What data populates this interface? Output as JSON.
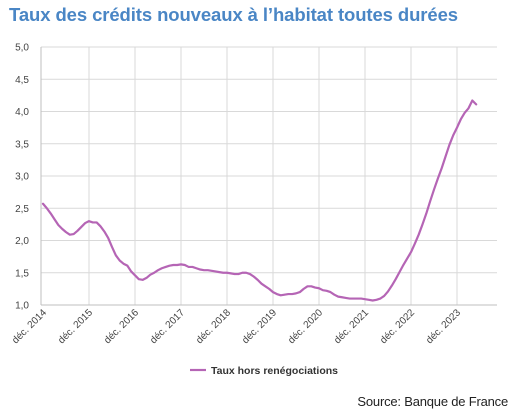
{
  "title": "Taux des crédits nouveaux à l’habitat toutes durées",
  "source": "Source: Banque de France",
  "chart_data": {
    "type": "line",
    "title": "Taux des crédits nouveaux à l’habitat toutes durées",
    "ylim": [
      1.0,
      5.0
    ],
    "y_ticks": [
      "1,0",
      "1,5",
      "2,0",
      "2,5",
      "3,0",
      "3,5",
      "4,0",
      "4,5",
      "5,0"
    ],
    "x_ticks": [
      "déc. 2014",
      "déc. 2015",
      "déc. 2016",
      "déc. 2017",
      "déc. 2018",
      "déc. 2019",
      "déc. 2020",
      "déc. 2021",
      "déc. 2022",
      "déc. 2023"
    ],
    "grid": true,
    "legend_position": "bottom-center",
    "series": [
      {
        "name": "Taux hors renégociations",
        "color": "#b565b5",
        "x_start": "déc. 2014",
        "frequency": "monthly",
        "values": [
          2.57,
          2.5,
          2.42,
          2.33,
          2.24,
          2.18,
          2.13,
          2.09,
          2.1,
          2.15,
          2.21,
          2.27,
          2.3,
          2.28,
          2.28,
          2.22,
          2.14,
          2.04,
          1.9,
          1.77,
          1.69,
          1.64,
          1.61,
          1.52,
          1.46,
          1.4,
          1.39,
          1.42,
          1.47,
          1.5,
          1.54,
          1.57,
          1.59,
          1.61,
          1.62,
          1.62,
          1.63,
          1.62,
          1.59,
          1.59,
          1.57,
          1.55,
          1.54,
          1.54,
          1.53,
          1.52,
          1.51,
          1.5,
          1.5,
          1.49,
          1.48,
          1.48,
          1.5,
          1.5,
          1.48,
          1.44,
          1.39,
          1.33,
          1.29,
          1.25,
          1.2,
          1.17,
          1.15,
          1.16,
          1.17,
          1.17,
          1.18,
          1.2,
          1.25,
          1.29,
          1.29,
          1.27,
          1.26,
          1.23,
          1.22,
          1.2,
          1.16,
          1.13,
          1.12,
          1.11,
          1.1,
          1.1,
          1.1,
          1.1,
          1.09,
          1.08,
          1.07,
          1.08,
          1.1,
          1.14,
          1.21,
          1.3,
          1.4,
          1.51,
          1.62,
          1.72,
          1.82,
          1.95,
          2.09,
          2.25,
          2.42,
          2.61,
          2.79,
          2.96,
          3.12,
          3.3,
          3.48,
          3.63,
          3.75,
          3.88,
          3.98,
          4.05,
          4.17,
          4.11
        ]
      }
    ]
  }
}
